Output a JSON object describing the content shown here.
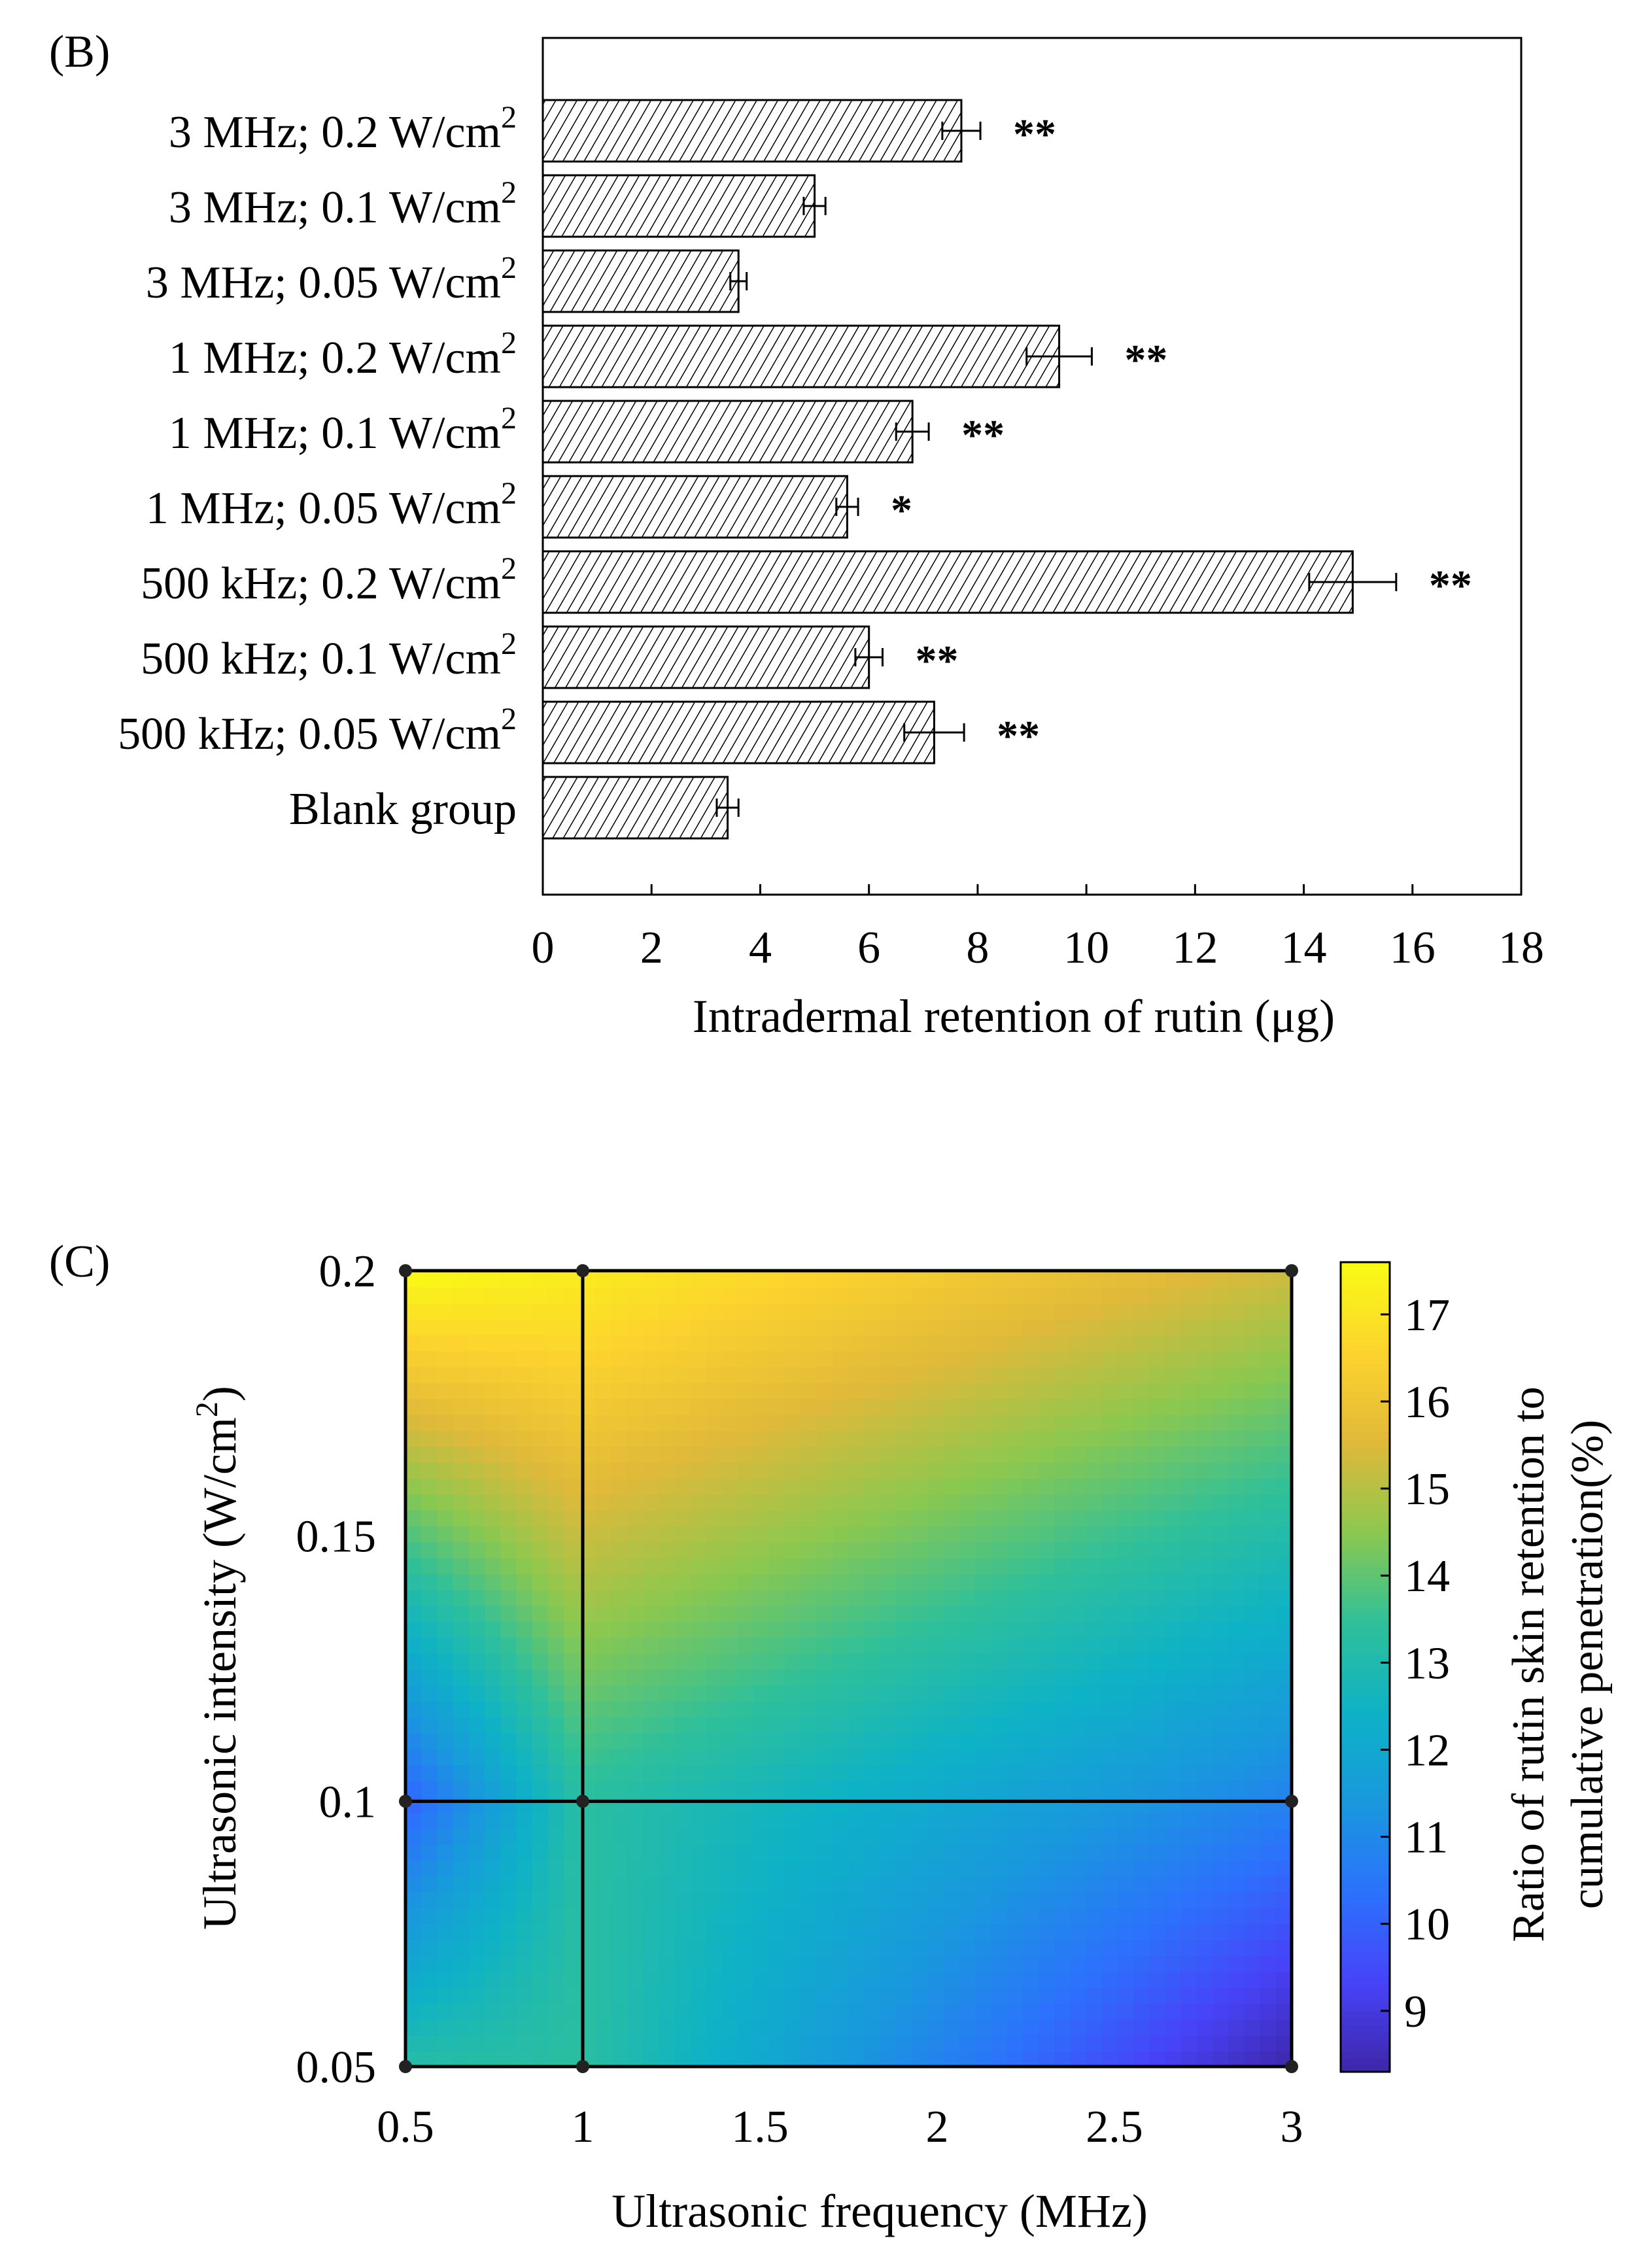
{
  "chart_data": [
    {
      "panel": "(B)",
      "type": "bar",
      "orientation": "horizontal",
      "xlabel": "Intradermal retention of rutin (μg)",
      "xlim": [
        0,
        18
      ],
      "xticks": [
        0,
        2,
        4,
        6,
        8,
        10,
        12,
        14,
        16,
        18
      ],
      "categories": [
        {
          "main": "3 MHz; 0.2  W/cm",
          "sup": "2"
        },
        {
          "main": "3 MHz; 0.1  W/cm",
          "sup": "2"
        },
        {
          "main": "3 MHz; 0.05 W/cm",
          "sup": "2"
        },
        {
          "main": "1 MHz; 0.2  W/cm",
          "sup": "2"
        },
        {
          "main": "1 MHz; 0.1  W/cm",
          "sup": "2"
        },
        {
          "main": "1 MHz; 0.05 W/cm",
          "sup": "2"
        },
        {
          "main": "500 kHz; 0.2 W/cm",
          "sup": "2"
        },
        {
          "main": "500 kHz; 0.1 W/cm",
          "sup": "2"
        },
        {
          "main": "500 kHz; 0.05 W/cm",
          "sup": "2"
        },
        {
          "main": "Blank group",
          "sup": ""
        }
      ],
      "values": [
        7.7,
        5.0,
        3.6,
        9.5,
        6.8,
        5.6,
        14.9,
        6.0,
        7.2,
        3.4
      ],
      "errors": [
        0.35,
        0.2,
        0.15,
        0.6,
        0.3,
        0.2,
        0.8,
        0.25,
        0.55,
        0.2
      ],
      "significance": [
        "**",
        "",
        "",
        "**",
        "**",
        "*",
        "**",
        "**",
        "**",
        ""
      ],
      "fill": "diagonal hatch"
    },
    {
      "panel": "(C)",
      "type": "heatmap",
      "xlabel": "Ultrasonic frequency (MHz)",
      "ylabel_main": "Ultrasonic intensity (W/cm",
      "ylabel_sup": "2",
      "ylabel_end": ")",
      "x_ticks": [
        "0.5",
        "1",
        "1.5",
        "2",
        "2.5",
        "3"
      ],
      "y_ticks": [
        "0.05",
        "0.1",
        "0.15",
        "0.2"
      ],
      "xlim": [
        0.5,
        3
      ],
      "ylim": [
        0.05,
        0.2
      ],
      "x": [
        0.5,
        1,
        3
      ],
      "y": [
        0.05,
        0.1,
        0.2
      ],
      "z": [
        [
          13.2,
          13.3,
          8.3
        ],
        [
          10.0,
          13.3,
          10.8
        ],
        [
          17.6,
          17.2,
          15.3
        ]
      ],
      "colorbar": {
        "label_line1": "Ratio of rutin skin retention to",
        "label_line2": "cumulative penetration(%)",
        "ticks": [
          "9",
          "10",
          "11",
          "12",
          "13",
          "14",
          "15",
          "16",
          "17"
        ],
        "range": [
          8.3,
          17.6
        ]
      },
      "colormap": "parula",
      "colormap_stops": [
        "#3e26a8",
        "#4743f8",
        "#2c72fc",
        "#1998dd",
        "#0eb2c6",
        "#2fc09a",
        "#8bc84f",
        "#e0b93a",
        "#fcd32e",
        "#f9fb15"
      ]
    }
  ]
}
